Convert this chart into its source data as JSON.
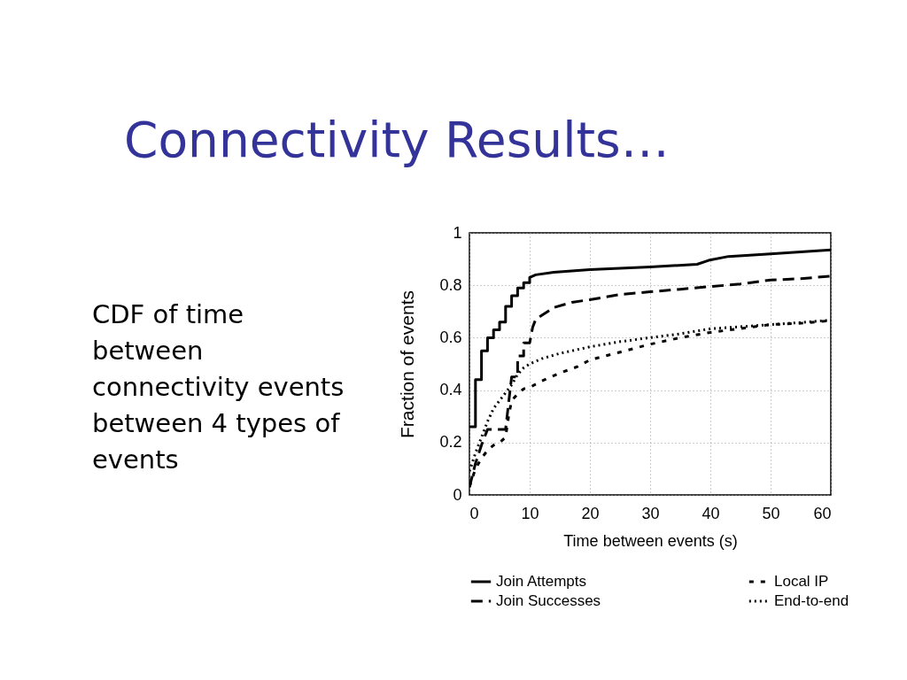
{
  "chart_data": {
    "type": "line",
    "title": "Connectivity Results…",
    "annotations": [
      "CDF of time between connectivity events between 4 types of events"
    ],
    "xlabel": "Time between events (s)",
    "ylabel": "Fraction of events",
    "xlim": [
      0,
      60
    ],
    "xticks": [
      0,
      10,
      20,
      30,
      40,
      50,
      60
    ],
    "ylim": [
      0,
      1
    ],
    "yticks": [
      0,
      0.2,
      0.4,
      0.6,
      0.8,
      1
    ],
    "grid": true,
    "legend": "bottom",
    "series": [
      {
        "name": "Join Attempts",
        "color": "#000000",
        "line_style": "solid",
        "x": [
          0,
          1,
          1,
          2,
          2,
          3,
          3,
          4,
          4,
          5,
          5,
          6,
          6,
          7,
          7,
          8,
          8,
          9,
          9,
          10,
          10,
          11,
          14,
          20,
          25,
          30,
          37.8,
          39.7,
          43,
          50,
          60
        ],
        "values": [
          0.26,
          0.26,
          0.44,
          0.44,
          0.55,
          0.55,
          0.6,
          0.6,
          0.63,
          0.63,
          0.66,
          0.66,
          0.72,
          0.72,
          0.76,
          0.76,
          0.79,
          0.79,
          0.81,
          0.81,
          0.83,
          0.84,
          0.85,
          0.86,
          0.865,
          0.87,
          0.88,
          0.895,
          0.91,
          0.92,
          0.935
        ]
      },
      {
        "name": "Join Successes",
        "color": "#000000",
        "line_style": "dashed",
        "x": [
          0,
          1,
          2,
          3,
          6,
          7,
          8,
          8,
          9,
          9,
          10,
          10.5,
          11,
          14,
          17,
          20,
          25,
          30,
          35,
          40,
          45,
          50,
          55,
          60
        ],
        "values": [
          0.03,
          0.12,
          0.19,
          0.25,
          0.25,
          0.45,
          0.45,
          0.53,
          0.53,
          0.58,
          0.58,
          0.64,
          0.67,
          0.715,
          0.735,
          0.745,
          0.765,
          0.775,
          0.785,
          0.795,
          0.805,
          0.82,
          0.825,
          0.835
        ]
      },
      {
        "name": "Local IP",
        "color": "#000000",
        "line_style": "dashed",
        "x": [
          0,
          1,
          2,
          3,
          4,
          5,
          6,
          6.5,
          7,
          8,
          9,
          10,
          12,
          15,
          18,
          20,
          25,
          30,
          35,
          40,
          45,
          50,
          55,
          60
        ],
        "values": [
          0.03,
          0.1,
          0.14,
          0.17,
          0.19,
          0.2,
          0.22,
          0.3,
          0.36,
          0.385,
          0.405,
          0.41,
          0.435,
          0.465,
          0.49,
          0.515,
          0.545,
          0.575,
          0.6,
          0.62,
          0.635,
          0.65,
          0.655,
          0.665
        ]
      },
      {
        "name": "End-to-end",
        "color": "#000000",
        "line_style": "dotted",
        "x": [
          0,
          1,
          2,
          3,
          4,
          5,
          6,
          7,
          8,
          9,
          10,
          12,
          15,
          20,
          25,
          30,
          35,
          40,
          45,
          50,
          55,
          60
        ],
        "values": [
          0.09,
          0.16,
          0.22,
          0.28,
          0.33,
          0.36,
          0.39,
          0.42,
          0.46,
          0.485,
          0.5,
          0.52,
          0.54,
          0.565,
          0.585,
          0.6,
          0.615,
          0.634,
          0.642,
          0.65,
          0.658,
          0.667
        ]
      }
    ]
  }
}
